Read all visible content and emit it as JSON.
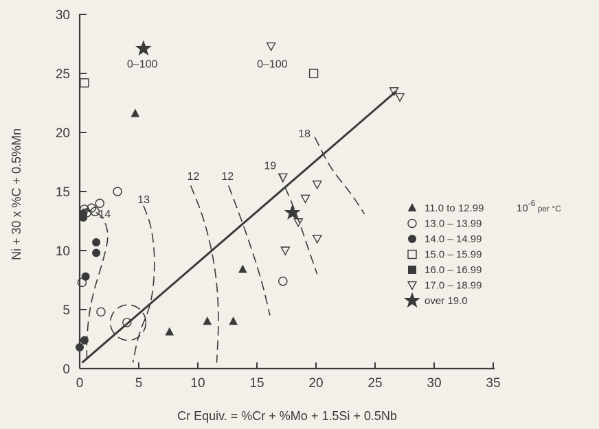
{
  "chart_data": {
    "type": "scatter",
    "xlabel": "Cr Equiv. = %Cr + %Mo + 1.5Si + 0.5Nb",
    "ylabel": "Ni + 30 x %C + 0.5%Mn",
    "xlim": [
      0,
      35
    ],
    "ylim": [
      0,
      30
    ],
    "xticks": [
      "0",
      "5",
      "10",
      "15",
      "20",
      "25",
      "30",
      "35"
    ],
    "yticks": [
      "0",
      "5",
      "10",
      "15",
      "20",
      "25",
      "30"
    ],
    "legend_position": "right",
    "series": [
      {
        "name": "11.0 to 12.99",
        "marker": "triangle-filled",
        "points": [
          [
            4.7,
            21.6
          ],
          [
            7.6,
            3.1
          ],
          [
            10.8,
            4.0
          ],
          [
            13.0,
            4.0
          ],
          [
            13.8,
            8.4
          ]
        ]
      },
      {
        "name": "13.0 – 13.99",
        "marker": "circle-open",
        "points": [
          [
            3.2,
            15.0
          ],
          [
            0.4,
            13.5
          ],
          [
            0.6,
            13.2
          ],
          [
            1.0,
            13.6
          ],
          [
            1.3,
            13.3
          ],
          [
            1.7,
            14.0
          ],
          [
            0.2,
            7.3
          ],
          [
            1.8,
            4.8
          ],
          [
            4.0,
            3.9
          ],
          [
            17.2,
            7.4
          ]
        ]
      },
      {
        "name": "14.0 – 14.99",
        "marker": "circle-filled",
        "points": [
          [
            0.3,
            13.1
          ],
          [
            0.3,
            12.8
          ],
          [
            1.4,
            10.7
          ],
          [
            1.4,
            9.8
          ],
          [
            0.5,
            7.8
          ],
          [
            0.4,
            2.4
          ],
          [
            0.0,
            1.8
          ]
        ]
      },
      {
        "name": "15.0 – 15.99",
        "marker": "square-open",
        "points": [
          [
            0.4,
            24.2
          ],
          [
            19.8,
            25.0
          ]
        ]
      },
      {
        "name": "16.0 – 16.99",
        "marker": "square-filled",
        "points": []
      },
      {
        "name": "17.0 – 18.99",
        "marker": "triangle-down-open",
        "points": [
          [
            16.2,
            27.3
          ],
          [
            26.6,
            23.5
          ],
          [
            27.1,
            23.0
          ],
          [
            17.2,
            16.2
          ],
          [
            20.1,
            15.6
          ],
          [
            19.1,
            14.4
          ],
          [
            18.5,
            12.4
          ],
          [
            17.4,
            10.0
          ],
          [
            20.1,
            11.0
          ]
        ]
      },
      {
        "name": "over 19.0",
        "marker": "star-filled",
        "points": [
          [
            5.4,
            27.1
          ],
          [
            18.0,
            13.2
          ]
        ]
      }
    ],
    "trend_line": {
      "from": [
        0.2,
        0.5
      ],
      "to": [
        26.8,
        23.5
      ]
    },
    "contours": [
      {
        "label": "14",
        "label_at": [
          1.6,
          12.8
        ],
        "points": [
          [
            0.2,
            13.5
          ],
          [
            1.8,
            13.2
          ],
          [
            2.5,
            11.5
          ],
          [
            2.1,
            9.5
          ],
          [
            1.0,
            6.0
          ],
          [
            0.6,
            3.0
          ],
          [
            0.6,
            0.5
          ]
        ]
      },
      {
        "label": "13",
        "label_at": [
          4.9,
          14.0
        ],
        "points": [
          [
            5.4,
            13.8
          ],
          [
            6.1,
            12.0
          ],
          [
            6.4,
            9.0
          ],
          [
            6.1,
            5.5
          ],
          [
            5.0,
            3.0
          ],
          [
            4.5,
            0.5
          ]
        ]
      },
      {
        "label": "12",
        "label_at": [
          9.1,
          16.0
        ],
        "points": [
          [
            9.4,
            15.5
          ],
          [
            10.6,
            12.5
          ],
          [
            11.5,
            8.5
          ],
          [
            11.8,
            4.5
          ],
          [
            11.6,
            0.5
          ]
        ]
      },
      {
        "label": "12",
        "label_at": [
          12.0,
          16.0
        ],
        "points": [
          [
            12.6,
            15.5
          ],
          [
            14.1,
            11.5
          ],
          [
            15.4,
            7.5
          ],
          [
            16.1,
            4.5
          ]
        ]
      },
      {
        "label": "19",
        "label_at": [
          15.6,
          16.9
        ],
        "points": [
          [
            16.9,
            16.5
          ],
          [
            18.4,
            13.0
          ],
          [
            19.4,
            10.0
          ],
          [
            20.1,
            8.0
          ]
        ]
      },
      {
        "label": "18",
        "label_at": [
          18.5,
          19.6
        ],
        "points": [
          [
            19.9,
            19.6
          ],
          [
            21.2,
            17.0
          ],
          [
            23.0,
            14.8
          ],
          [
            24.1,
            13.1
          ]
        ]
      }
    ],
    "dashed_circle": {
      "center": [
        4.1,
        3.9
      ],
      "radius": 1.5
    },
    "annotations": [
      {
        "text": "0–100",
        "at": [
          5.3,
          25.5
        ]
      },
      {
        "text": "0–100",
        "at": [
          16.3,
          25.5
        ]
      }
    ],
    "legend_unit_prefix": "10",
    "legend_unit_exp": "-6",
    "legend_unit_suffix": " per °C"
  }
}
